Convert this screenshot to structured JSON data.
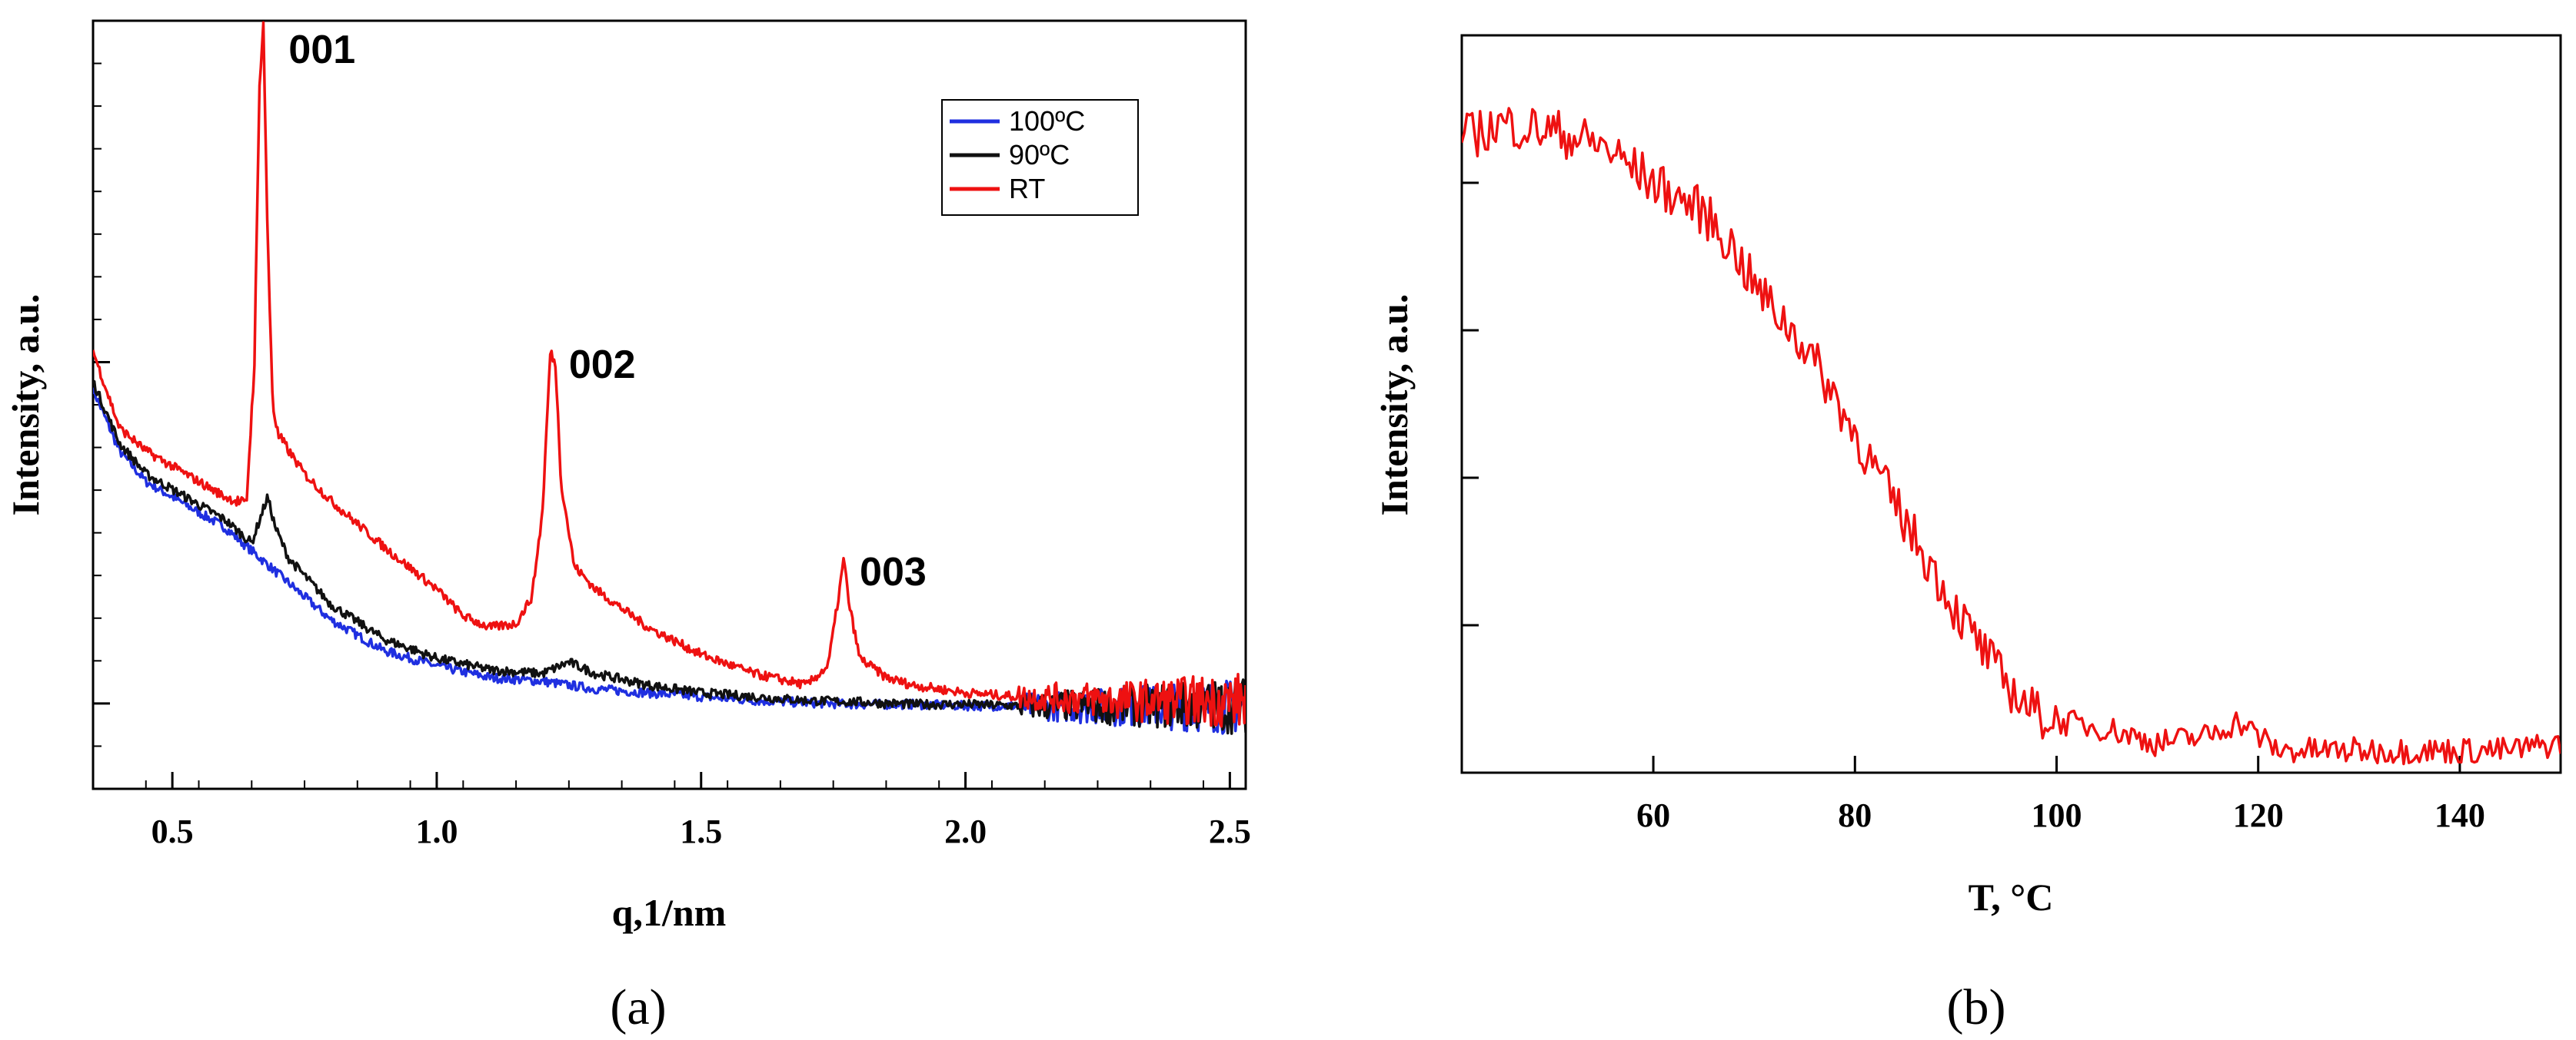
{
  "chart_data": [
    {
      "type": "line",
      "panel_label": "(a)",
      "xlabel": "q,1/nm",
      "ylabel": "Intensity, a.u.",
      "xlim": [
        0.35,
        2.53
      ],
      "ylim": [
        0,
        100
      ],
      "xticks": [
        0.5,
        1.0,
        1.5,
        2.0,
        2.5
      ],
      "xtick_labels": [
        "0.5",
        "1.0",
        "1.5",
        "2.0",
        "2.5"
      ],
      "series": [
        {
          "name": "100ºC",
          "color": "#1f2fe0",
          "x": [
            0.35,
            0.4,
            0.45,
            0.5,
            0.55,
            0.6,
            0.65,
            0.7,
            0.8,
            0.9,
            1.0,
            1.1,
            1.2,
            1.3,
            1.4,
            1.5,
            1.6,
            1.7,
            1.8,
            1.9,
            2.0,
            2.1,
            2.2,
            2.3,
            2.4,
            2.53
          ],
          "y": [
            52,
            44,
            40,
            38,
            36,
            34,
            31,
            28,
            22,
            18,
            16,
            14.5,
            14,
            13,
            12.5,
            12,
            11.5,
            11.2,
            11,
            11,
            10.8,
            10.8,
            10.7,
            10.7,
            10.7,
            10.7
          ]
        },
        {
          "name": "90ºC",
          "color": "#111111",
          "x": [
            0.35,
            0.4,
            0.45,
            0.5,
            0.55,
            0.6,
            0.65,
            0.665,
            0.68,
            0.695,
            0.72,
            0.8,
            0.9,
            1.0,
            1.1,
            1.2,
            1.25,
            1.3,
            1.4,
            1.5,
            1.6,
            1.7,
            1.8,
            1.9,
            2.0,
            2.1,
            2.2,
            2.3,
            2.4,
            2.53
          ],
          "y": [
            53,
            45,
            41,
            39,
            37,
            35,
            32,
            35,
            38,
            34,
            30,
            24,
            19.5,
            17,
            15.5,
            15,
            16.5,
            15,
            13.5,
            12.5,
            12,
            11.5,
            11.3,
            11,
            11,
            10.8,
            10.8,
            10.8,
            10.8,
            10.8
          ]
        },
        {
          "name": "RT",
          "color": "#ee1111",
          "x": [
            0.35,
            0.4,
            0.45,
            0.5,
            0.55,
            0.6,
            0.64,
            0.655,
            0.665,
            0.672,
            0.68,
            0.69,
            0.7,
            0.75,
            0.8,
            0.9,
            1.0,
            1.05,
            1.1,
            1.15,
            1.18,
            1.2,
            1.215,
            1.225,
            1.235,
            1.26,
            1.3,
            1.4,
            1.5,
            1.6,
            1.7,
            1.74,
            1.76,
            1.77,
            1.78,
            1.8,
            1.85,
            1.9,
            2.0,
            2.1,
            2.2,
            2.3,
            2.4,
            2.53
          ],
          "y": [
            57,
            47,
            44,
            42,
            40,
            38,
            37,
            55,
            92,
            100,
            72,
            50,
            46,
            41,
            37.5,
            31.5,
            26,
            22.5,
            21,
            21.5,
            25,
            36,
            57,
            55,
            40,
            29,
            26,
            21,
            17.5,
            15,
            13.5,
            16,
            25,
            30,
            24,
            17,
            14.5,
            13.5,
            12.5,
            12,
            11.8,
            11.5,
            11.5,
            11.5
          ]
        }
      ],
      "annotations": [
        {
          "text": "001",
          "x": 0.72,
          "y": 100
        },
        {
          "text": "002",
          "x": 1.25,
          "y": 59
        },
        {
          "text": "003",
          "x": 1.8,
          "y": 32
        }
      ],
      "legend_position": "top-right"
    },
    {
      "type": "line",
      "panel_label": "(b)",
      "xlabel": "T, °C",
      "ylabel": "Intensity, a.u.",
      "xlim": [
        41,
        150
      ],
      "ylim": [
        0,
        100
      ],
      "xticks": [
        60,
        80,
        100,
        120,
        140
      ],
      "xtick_labels": [
        "60",
        "80",
        "100",
        "120",
        "140"
      ],
      "series": [
        {
          "name": "intensity",
          "color": "#ee1111",
          "x": [
            41,
            45,
            50,
            55,
            60,
            65,
            68,
            70,
            75,
            78,
            80,
            82,
            85,
            88,
            90,
            92,
            95,
            98,
            100,
            105,
            110,
            115,
            118,
            120,
            122,
            125,
            130,
            135,
            140,
            145,
            150
          ],
          "y": [
            86,
            88,
            87,
            85,
            80,
            76,
            71,
            66,
            58,
            51,
            46,
            41,
            34,
            27,
            22,
            18,
            12,
            8,
            7,
            6,
            4,
            5,
            7,
            5,
            3,
            3,
            3,
            3,
            3,
            3,
            4
          ]
        }
      ]
    }
  ]
}
